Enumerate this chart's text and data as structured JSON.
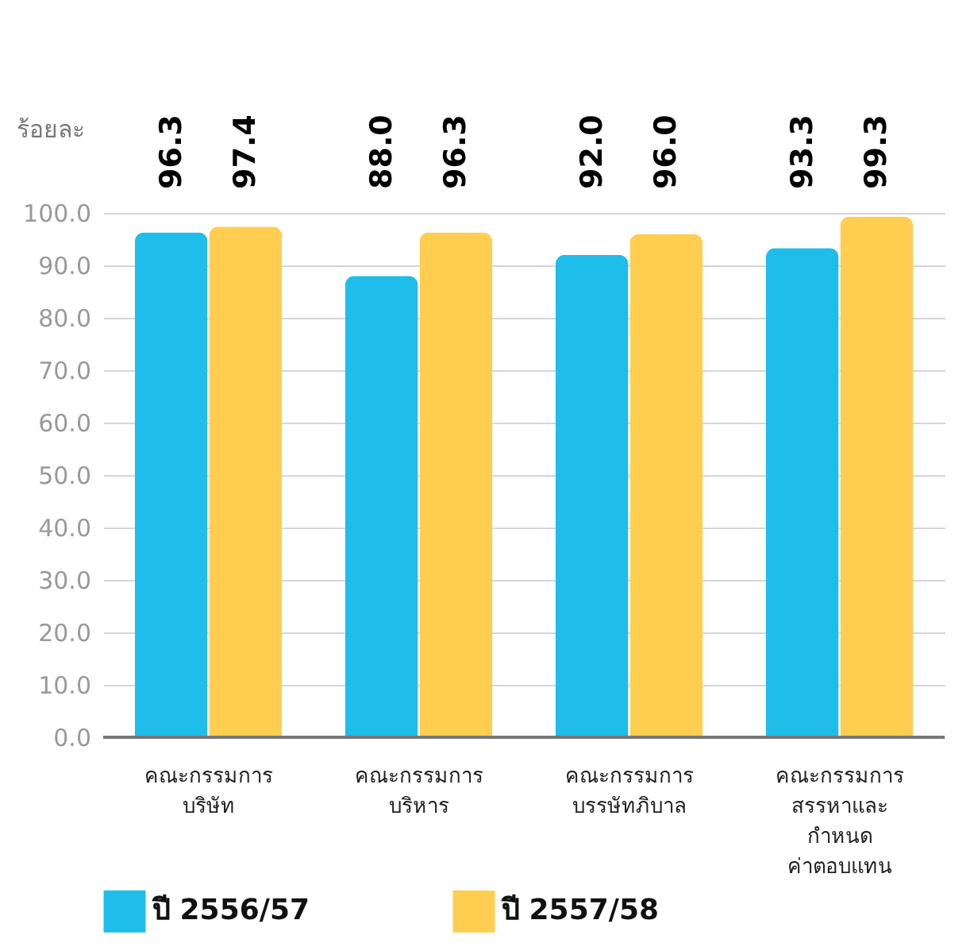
{
  "chart_data": {
    "type": "bar",
    "ylabel": "ร้อยละ",
    "categories": [
      "คณะกรรมการ\nบริษัท",
      "คณะกรรมการ\nบริหาร",
      "คณะกรรมการ\nบรรษัทภิบาล",
      "คณะกรรมการ\nสรรหาและ\nกำหนด\nค่าตอบแทน"
    ],
    "series": [
      {
        "name": "ปี 2556/57",
        "color": "#1fbde9",
        "values": [
          96.3,
          88.0,
          92.0,
          93.3
        ],
        "value_labels": [
          "96.3",
          "88.0",
          "92.0",
          "93.3"
        ]
      },
      {
        "name": "ปี 2557/58",
        "color": "#ffcd50",
        "values": [
          97.4,
          96.3,
          96.0,
          99.3
        ],
        "value_labels": [
          "97.4",
          "96.3",
          "96.0",
          "99.3"
        ]
      }
    ],
    "ylim": [
      0,
      100
    ],
    "yticks": [
      {
        "value": 0,
        "label": "0.0"
      },
      {
        "value": 10,
        "label": "10.0"
      },
      {
        "value": 20,
        "label": "20.0"
      },
      {
        "value": 30,
        "label": "30.0"
      },
      {
        "value": 40,
        "label": "40.0"
      },
      {
        "value": 50,
        "label": "50.0"
      },
      {
        "value": 60,
        "label": "60.0"
      },
      {
        "value": 70,
        "label": "70.0"
      },
      {
        "value": 80,
        "label": "80.0"
      },
      {
        "value": 90,
        "label": "90.0"
      },
      {
        "value": 100,
        "label": "100.0"
      }
    ],
    "grid": "y",
    "legend": "bottom"
  }
}
